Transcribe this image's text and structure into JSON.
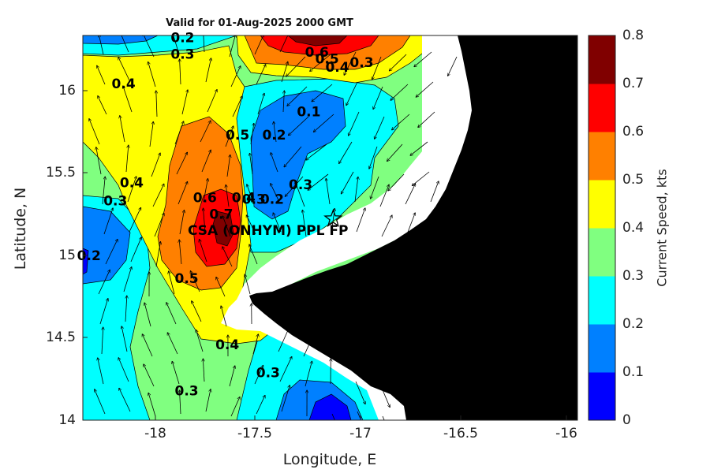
{
  "title": "Valid for 01-Aug-2025 2000 GMT",
  "xlabel": "Longitude, E",
  "ylabel": "Latitude, N",
  "colorbar": {
    "label": "Current Speed, kts",
    "ticks": [
      "0",
      "0.1",
      "0.2",
      "0.3",
      "0.4",
      "0.5",
      "0.6",
      "0.7",
      "0.8"
    ],
    "colors": [
      "#0000ff",
      "#0080ff",
      "#00ffff",
      "#80ff80",
      "#ffff00",
      "#ff8000",
      "#ff0000",
      "#800000"
    ]
  },
  "x_ticks": [
    "-18",
    "-17.5",
    "-17",
    "-16.5",
    "-16"
  ],
  "y_ticks": [
    "16",
    "15.5",
    "15",
    "14.5",
    "14"
  ],
  "site": {
    "label": "CSA (ONHYM) PPL FP",
    "lon": -17.12,
    "lat": 15.22
  },
  "contour_labels": [
    {
      "text": "0.2",
      "lon": -17.86,
      "lat": 16.29
    },
    {
      "text": "0.3",
      "lon": -17.86,
      "lat": 16.19
    },
    {
      "text": "0.4",
      "lon": -18.15,
      "lat": 16.01
    },
    {
      "text": "0.6",
      "lon": -17.2,
      "lat": 16.2
    },
    {
      "text": "0.5",
      "lon": -17.15,
      "lat": 16.16
    },
    {
      "text": "0.4",
      "lon": -17.1,
      "lat": 16.11
    },
    {
      "text": "0.3",
      "lon": -16.98,
      "lat": 16.14
    },
    {
      "text": "0.1",
      "lon": -17.24,
      "lat": 15.84
    },
    {
      "text": "0.5",
      "lon": -17.59,
      "lat": 15.7
    },
    {
      "text": "0.2",
      "lon": -17.41,
      "lat": 15.7
    },
    {
      "text": "0.4",
      "lon": -18.11,
      "lat": 15.41
    },
    {
      "text": "0.3",
      "lon": -18.19,
      "lat": 15.3
    },
    {
      "text": "0.6",
      "lon": -17.75,
      "lat": 15.32
    },
    {
      "text": "0.7",
      "lon": -17.67,
      "lat": 15.22
    },
    {
      "text": "0.4",
      "lon": -17.56,
      "lat": 15.32
    },
    {
      "text": "0.3",
      "lon": -17.51,
      "lat": 15.31
    },
    {
      "text": "0.2",
      "lon": -17.42,
      "lat": 15.31
    },
    {
      "text": "0.3",
      "lon": -17.28,
      "lat": 15.4
    },
    {
      "text": "0.2",
      "lon": -18.32,
      "lat": 14.97
    },
    {
      "text": "0.5",
      "lon": -17.84,
      "lat": 14.83
    },
    {
      "text": "0.4",
      "lon": -17.64,
      "lat": 14.43
    },
    {
      "text": "0.3",
      "lon": -17.44,
      "lat": 14.26
    },
    {
      "text": "0.3",
      "lon": -17.84,
      "lat": 14.15
    }
  ]
}
